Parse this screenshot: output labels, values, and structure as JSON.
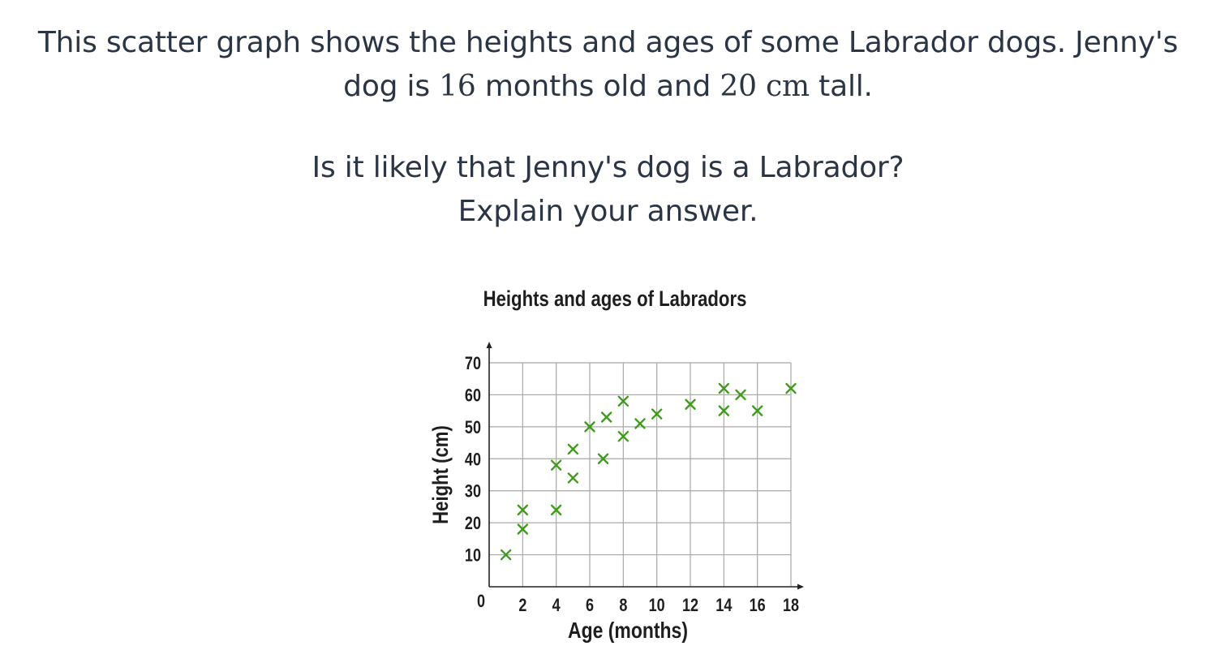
{
  "question": {
    "line1": "This scatter graph shows the heights and ages of some Labrador dogs. Jenny's",
    "line2_pre": "dog is ",
    "line2_age": "16",
    "line2_mid": " months old and ",
    "line2_height": "20",
    "line2_unit": "cm",
    "line2_post": " tall.",
    "line3": "Is it likely that Jenny's dog is a Labrador?",
    "line4": "Explain your answer."
  },
  "chart_data": {
    "type": "scatter",
    "title": "Heights and ages of Labradors",
    "xlabel": "Age (months)",
    "ylabel": "Height (cm)",
    "xlim": [
      0,
      18
    ],
    "ylim": [
      0,
      70
    ],
    "xticks": [
      0,
      2,
      4,
      6,
      8,
      10,
      12,
      14,
      16,
      18
    ],
    "yticks": [
      0,
      10,
      20,
      30,
      40,
      50,
      60,
      70
    ],
    "grid": true,
    "marker": "x",
    "marker_color": "#3f9c1a",
    "points": [
      {
        "x": 1,
        "y": 10
      },
      {
        "x": 2,
        "y": 18
      },
      {
        "x": 2,
        "y": 24
      },
      {
        "x": 4,
        "y": 24
      },
      {
        "x": 4,
        "y": 38
      },
      {
        "x": 5,
        "y": 34
      },
      {
        "x": 5,
        "y": 43
      },
      {
        "x": 6,
        "y": 50
      },
      {
        "x": 6.8,
        "y": 40
      },
      {
        "x": 7,
        "y": 53
      },
      {
        "x": 8,
        "y": 47
      },
      {
        "x": 8,
        "y": 58
      },
      {
        "x": 9,
        "y": 51
      },
      {
        "x": 10,
        "y": 54
      },
      {
        "x": 12,
        "y": 57
      },
      {
        "x": 14,
        "y": 55
      },
      {
        "x": 14,
        "y": 62
      },
      {
        "x": 15,
        "y": 60
      },
      {
        "x": 16,
        "y": 55
      },
      {
        "x": 18,
        "y": 62
      }
    ]
  }
}
